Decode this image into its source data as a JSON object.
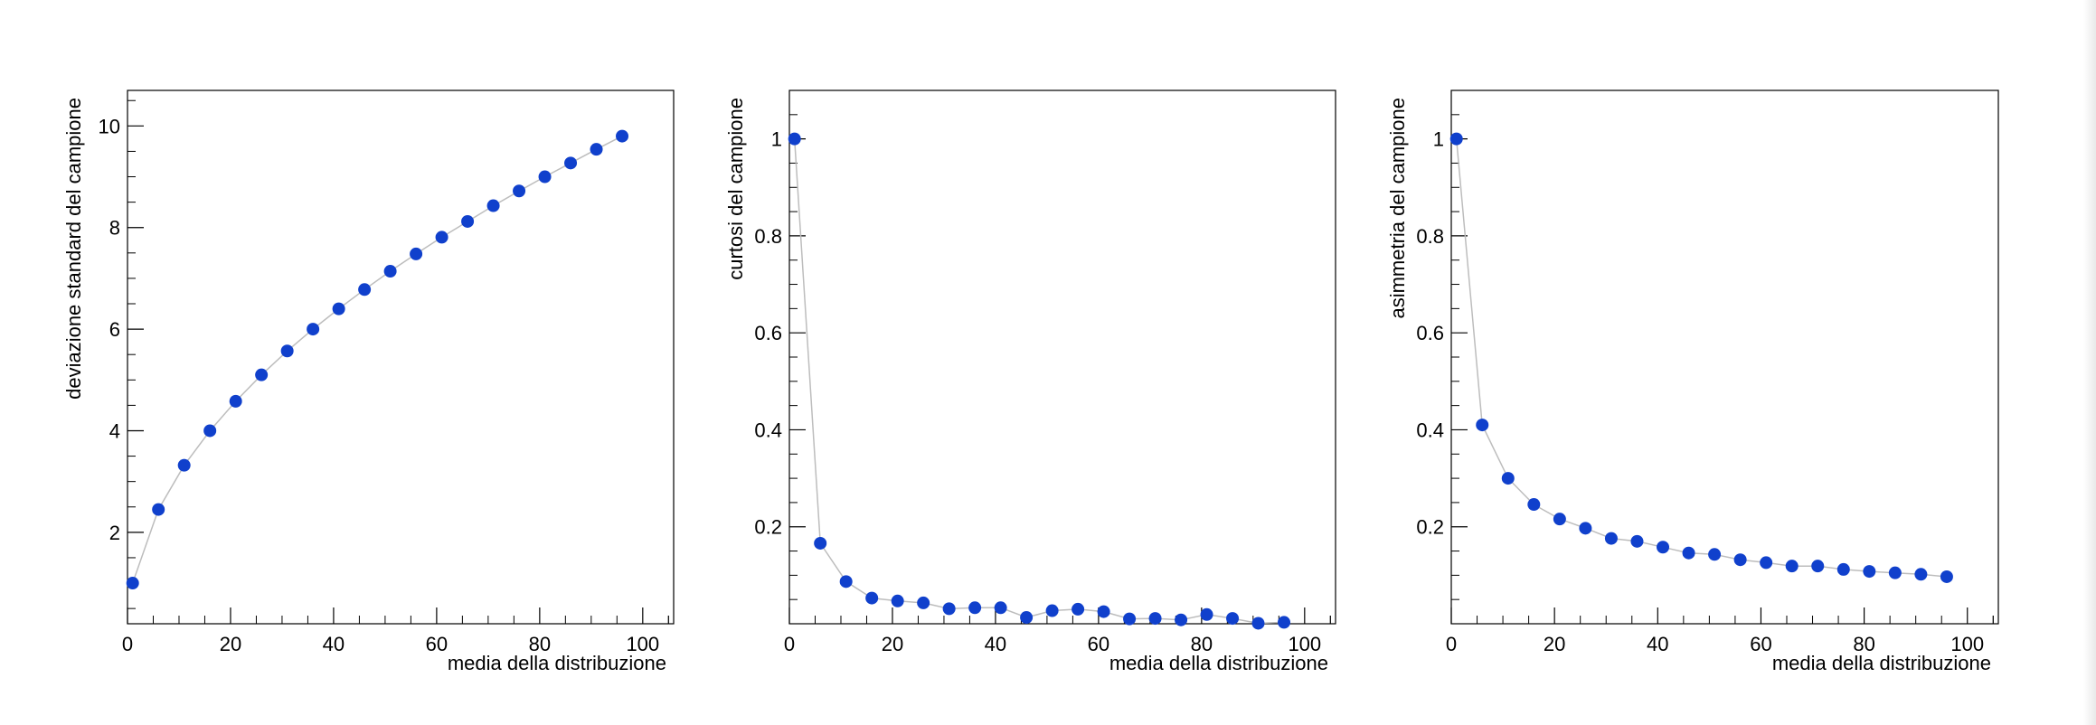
{
  "colors": {
    "marker": "#1040cc",
    "line": "#bdbdbd",
    "frame": "#000000"
  },
  "chart_data": [
    {
      "type": "line",
      "xlabel": "media della distribuzione",
      "ylabel": "deviazione standard del campione",
      "xlim": [
        0,
        106
      ],
      "ylim": [
        0.2,
        10.7
      ],
      "x_ticks": [
        0,
        20,
        40,
        60,
        80,
        100
      ],
      "x_tick_labels": [
        "0",
        "20",
        "40",
        "60",
        "80",
        "100"
      ],
      "y_ticks": [
        2,
        4,
        6,
        8,
        10
      ],
      "y_tick_labels": [
        "2",
        "4",
        "6",
        "8",
        "10"
      ],
      "series": [
        {
          "x": [
            1,
            6,
            11,
            16,
            21,
            26,
            31,
            36,
            41,
            46,
            51,
            56,
            61,
            66,
            71,
            76,
            81,
            86,
            91,
            96
          ],
          "y": [
            1.0,
            2.45,
            3.32,
            4.0,
            4.58,
            5.1,
            5.57,
            6.0,
            6.4,
            6.78,
            7.14,
            7.48,
            7.81,
            8.12,
            8.43,
            8.72,
            9.0,
            9.27,
            9.54,
            9.8
          ]
        }
      ]
    },
    {
      "type": "line",
      "xlabel": "media della distribuzione",
      "ylabel": "curtosi del campione",
      "xlim": [
        0,
        106
      ],
      "ylim": [
        0,
        1.1
      ],
      "x_ticks": [
        0,
        20,
        40,
        60,
        80,
        100
      ],
      "x_tick_labels": [
        "0",
        "20",
        "40",
        "60",
        "80",
        "100"
      ],
      "y_ticks": [
        0.2,
        0.4,
        0.6,
        0.8,
        1
      ],
      "y_tick_labels": [
        "0.2",
        "0.4",
        "0.6",
        "0.8",
        "1"
      ],
      "series": [
        {
          "x": [
            1,
            6,
            11,
            16,
            21,
            26,
            31,
            36,
            41,
            46,
            51,
            56,
            61,
            66,
            71,
            76,
            81,
            86,
            91,
            96
          ],
          "y": [
            1.0,
            0.166,
            0.087,
            0.053,
            0.047,
            0.043,
            0.031,
            0.033,
            0.033,
            0.013,
            0.027,
            0.03,
            0.025,
            0.01,
            0.011,
            0.008,
            0.019,
            0.011,
            0.001,
            0.003
          ]
        }
      ]
    },
    {
      "type": "line",
      "xlabel": "media della distribuzione",
      "ylabel": "asimmetria del campione",
      "xlim": [
        0,
        106
      ],
      "ylim": [
        0,
        1.1
      ],
      "x_ticks": [
        0,
        20,
        40,
        60,
        80,
        100
      ],
      "x_tick_labels": [
        "0",
        "20",
        "40",
        "60",
        "80",
        "100"
      ],
      "y_ticks": [
        0.2,
        0.4,
        0.6,
        0.8,
        1
      ],
      "y_tick_labels": [
        "0.2",
        "0.4",
        "0.6",
        "0.8",
        "1"
      ],
      "series": [
        {
          "x": [
            1,
            6,
            11,
            16,
            21,
            26,
            31,
            36,
            41,
            46,
            51,
            56,
            61,
            66,
            71,
            76,
            81,
            86,
            91,
            96
          ],
          "y": [
            1.0,
            0.41,
            0.3,
            0.246,
            0.216,
            0.197,
            0.176,
            0.17,
            0.158,
            0.146,
            0.143,
            0.132,
            0.126,
            0.119,
            0.119,
            0.112,
            0.108,
            0.105,
            0.102,
            0.097
          ]
        }
      ]
    }
  ]
}
